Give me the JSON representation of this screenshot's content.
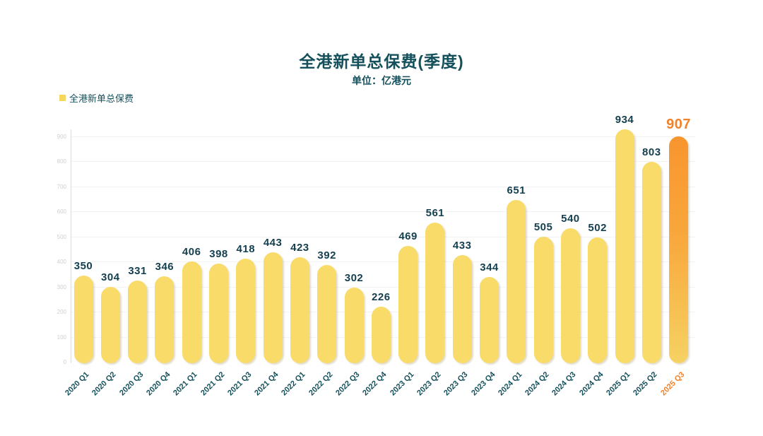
{
  "header": {
    "title": "全港新单总保费(季度)",
    "subtitle": "单位：亿港元"
  },
  "legend": {
    "label": "全港新单总保费",
    "swatch_color": "#F5D75E"
  },
  "chart_data": {
    "type": "bar",
    "title": "全港新单总保费(季度)",
    "unit_label": "单位：亿港元",
    "legend_entries": [
      "全港新单总保费"
    ],
    "legend_position": "top-left",
    "categories": [
      "2020 Q1",
      "2020 Q2",
      "2020 Q3",
      "2020 Q4",
      "2021 Q1",
      "2021 Q2",
      "2021 Q3",
      "2021 Q4",
      "2022 Q1",
      "2022 Q2",
      "2022 Q3",
      "2022 Q4",
      "2023 Q1",
      "2023 Q2",
      "2023 Q3",
      "2023 Q4",
      "2024 Q1",
      "2024 Q2",
      "2024 Q3",
      "2024 Q4",
      "2025 Q1",
      "2025 Q2",
      "2025 Q3"
    ],
    "values": [
      350,
      304,
      331,
      346,
      406,
      398,
      418,
      443,
      423,
      392,
      302,
      226,
      469,
      561,
      433,
      344,
      651,
      505,
      540,
      502,
      934,
      803,
      907
    ],
    "xlabel": "",
    "ylabel": "",
    "ylim": [
      0,
      900
    ],
    "yticks": [
      0,
      100,
      200,
      300,
      400,
      500,
      600,
      700,
      800,
      900
    ],
    "grid": true,
    "highlight_index": 22,
    "colors": {
      "bar": "#F9DB69",
      "highlight_top": "#F8952E",
      "highlight_mid": "#F8A83C",
      "highlight_bottom": "#F6D263",
      "value_label": "#143F4F",
      "highlight_label": "#F0822C",
      "category_label": "#14505C",
      "title": "#14505C",
      "ytick_label": "#CFCFCF",
      "gridline": "#F3F3F3",
      "axis_line": "#DCDCDC"
    }
  }
}
